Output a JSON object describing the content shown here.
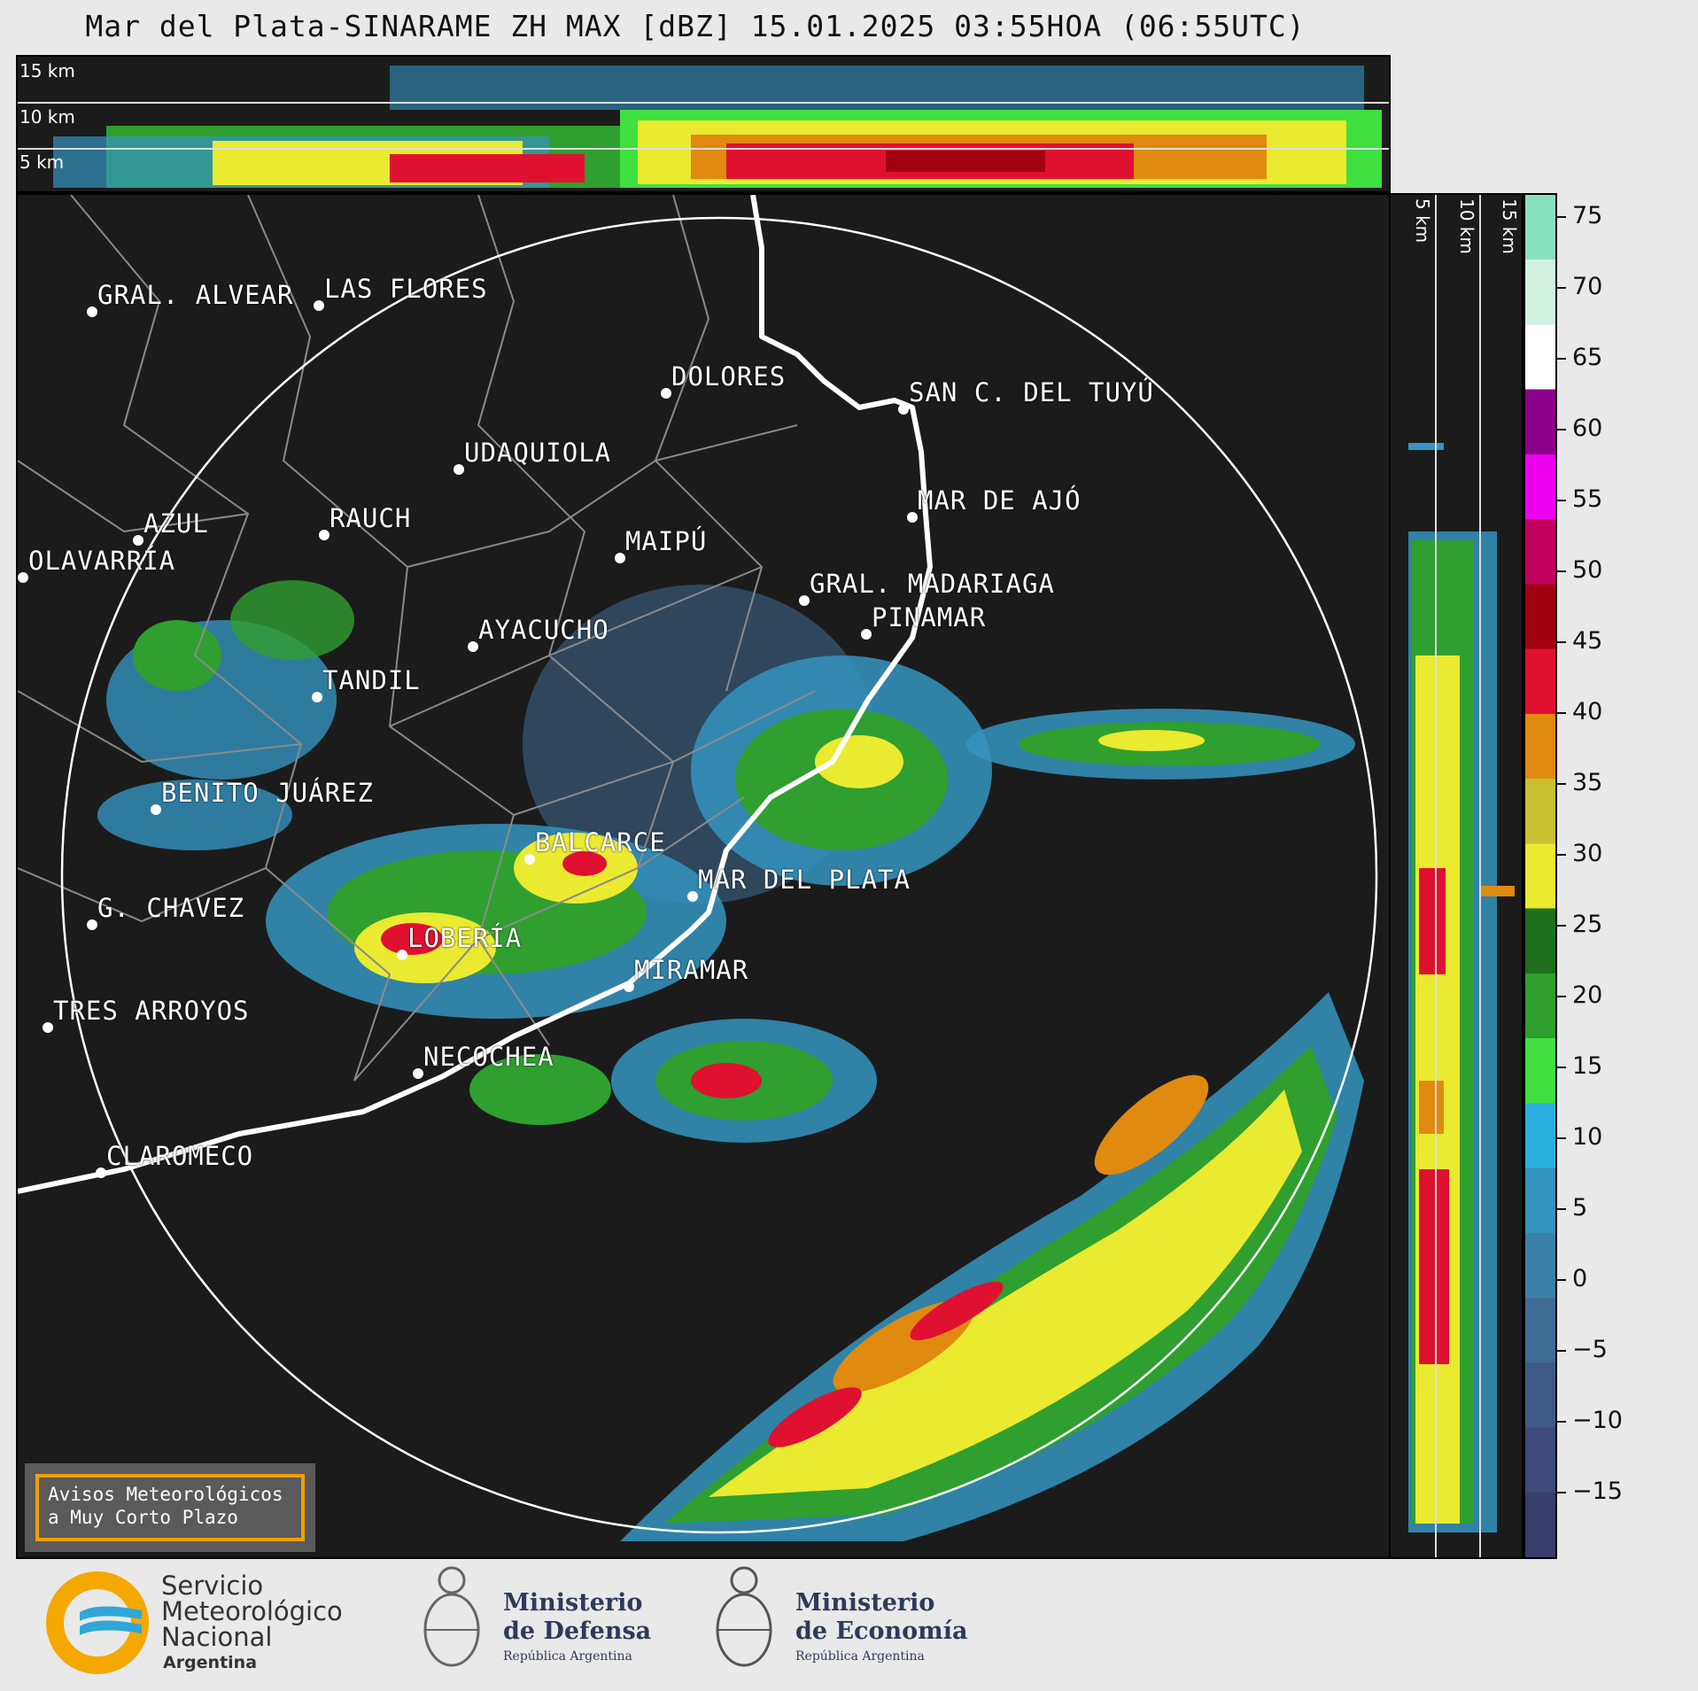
{
  "title": "Mar del Plata-SINARAME ZH MAX [dBZ] 15.01.2025 03:55HOA (06:55UTC)",
  "altitude_labels": [
    "15 km",
    "10 km",
    "5 km"
  ],
  "cities": [
    {
      "name": "GRAL. ALVEAR"
    },
    {
      "name": "LAS FLORES"
    },
    {
      "name": "DOLORES"
    },
    {
      "name": "SAN C. DEL TUYÚ"
    },
    {
      "name": "UDAQUIOLA"
    },
    {
      "name": "MAR DE AJÓ"
    },
    {
      "name": "AZUL"
    },
    {
      "name": "RAUCH"
    },
    {
      "name": "MAIPÚ"
    },
    {
      "name": "OLAVARRÍA"
    },
    {
      "name": "GRAL. MADARIAGA"
    },
    {
      "name": "PINAMAR"
    },
    {
      "name": "AYACUCHO"
    },
    {
      "name": "TANDIL"
    },
    {
      "name": "BENITO JUÁREZ"
    },
    {
      "name": "BALCARCE"
    },
    {
      "name": "MAR DEL PLATA"
    },
    {
      "name": "G. CHAVEZ"
    },
    {
      "name": "LOBERÍA"
    },
    {
      "name": "MIRAMAR"
    },
    {
      "name": "TRES ARROYOS"
    },
    {
      "name": "NECOCHEA"
    },
    {
      "name": "CLAROMECO"
    }
  ],
  "aviso": {
    "line1": "Avisos Meteorológicos",
    "line2": "a Muy Corto Plazo"
  },
  "colorbar": {
    "labels": [
      "75",
      "70",
      "65",
      "60",
      "55",
      "50",
      "45",
      "40",
      "35",
      "30",
      "25",
      "20",
      "15",
      "10",
      "5",
      "0",
      "−5",
      "−10",
      "−15"
    ],
    "colors": [
      "#3a3e6a",
      "#3d4a78",
      "#3f5a86",
      "#3f6c94",
      "#3c80a8",
      "#3494c0",
      "#2ab0e0",
      "#3fe03f",
      "#2f9f2f",
      "#1f6f1f",
      "#eaea30",
      "#c8c030",
      "#e08a10",
      "#e01030",
      "#a00010",
      "#c0005a",
      "#ee00ee",
      "#8a008a",
      "#ffffff",
      "#d0f0e0",
      "#88e0c0"
    ]
  },
  "logos": {
    "smn": {
      "line1": "Servicio",
      "line2": "Meteorológico",
      "line3": "Nacional",
      "line4": "Argentina"
    },
    "defensa": {
      "line1": "Ministerio",
      "line2": "de Defensa",
      "line3": "República Argentina"
    },
    "economia": {
      "line1": "Ministerio",
      "line2": "de Economía",
      "line3": "República Argentina"
    }
  }
}
